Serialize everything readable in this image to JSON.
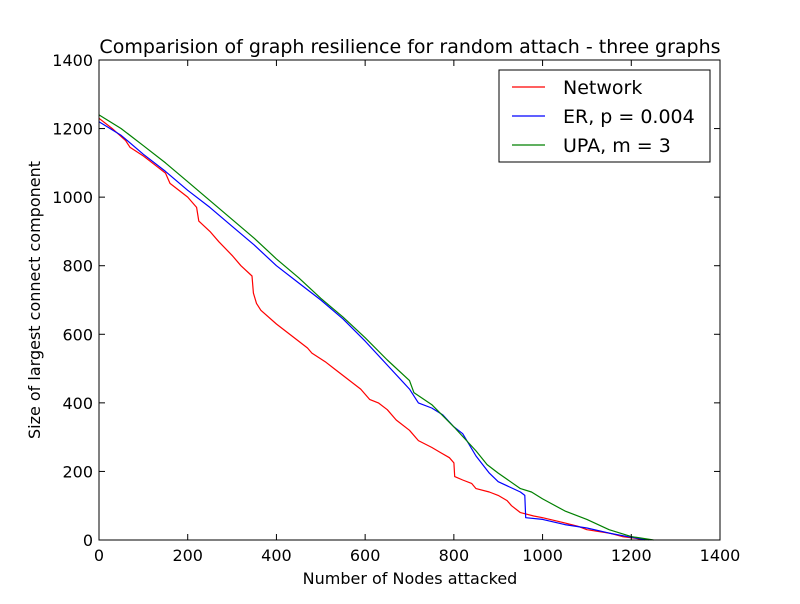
{
  "chart_data": {
    "type": "line",
    "title": "Comparision of graph resilience for random attach - three graphs",
    "xlabel": "Number of Nodes attacked",
    "ylabel": "Size of largest connect component",
    "xlim": [
      0,
      1400
    ],
    "ylim": [
      0,
      1400
    ],
    "xticks": [
      "0",
      "200",
      "400",
      "600",
      "800",
      "1000",
      "1200",
      "1400"
    ],
    "yticks": [
      "0",
      "200",
      "400",
      "600",
      "800",
      "1000",
      "1200",
      "1400"
    ],
    "grid": false,
    "legend_position": "top-right",
    "series": [
      {
        "name": "Network",
        "color": "#ff0000",
        "points": [
          [
            0,
            1230
          ],
          [
            30,
            1200
          ],
          [
            60,
            1165
          ],
          [
            70,
            1145
          ],
          [
            100,
            1120
          ],
          [
            130,
            1090
          ],
          [
            150,
            1070
          ],
          [
            160,
            1040
          ],
          [
            200,
            1000
          ],
          [
            220,
            970
          ],
          [
            225,
            930
          ],
          [
            250,
            900
          ],
          [
            270,
            870
          ],
          [
            300,
            830
          ],
          [
            320,
            800
          ],
          [
            345,
            770
          ],
          [
            348,
            720
          ],
          [
            355,
            690
          ],
          [
            365,
            670
          ],
          [
            400,
            630
          ],
          [
            420,
            610
          ],
          [
            450,
            580
          ],
          [
            470,
            560
          ],
          [
            480,
            545
          ],
          [
            510,
            520
          ],
          [
            530,
            500
          ],
          [
            560,
            470
          ],
          [
            590,
            440
          ],
          [
            610,
            410
          ],
          [
            630,
            400
          ],
          [
            650,
            380
          ],
          [
            670,
            350
          ],
          [
            700,
            320
          ],
          [
            720,
            290
          ],
          [
            750,
            270
          ],
          [
            770,
            255
          ],
          [
            790,
            240
          ],
          [
            800,
            225
          ],
          [
            802,
            185
          ],
          [
            820,
            175
          ],
          [
            840,
            165
          ],
          [
            850,
            150
          ],
          [
            880,
            140
          ],
          [
            900,
            130
          ],
          [
            920,
            115
          ],
          [
            930,
            100
          ],
          [
            950,
            80
          ],
          [
            980,
            70
          ],
          [
            1000,
            65
          ],
          [
            1050,
            50
          ],
          [
            1080,
            40
          ],
          [
            1100,
            30
          ],
          [
            1150,
            20
          ],
          [
            1180,
            10
          ],
          [
            1210,
            5
          ],
          [
            1230,
            0
          ]
        ]
      },
      {
        "name": "ER, p = 0.004",
        "color": "#0000ff",
        "points": [
          [
            0,
            1220
          ],
          [
            50,
            1180
          ],
          [
            100,
            1125
          ],
          [
            150,
            1075
          ],
          [
            200,
            1020
          ],
          [
            250,
            970
          ],
          [
            300,
            915
          ],
          [
            350,
            860
          ],
          [
            400,
            800
          ],
          [
            450,
            750
          ],
          [
            500,
            700
          ],
          [
            550,
            645
          ],
          [
            600,
            580
          ],
          [
            650,
            510
          ],
          [
            700,
            440
          ],
          [
            720,
            400
          ],
          [
            750,
            385
          ],
          [
            775,
            365
          ],
          [
            800,
            330
          ],
          [
            820,
            310
          ],
          [
            850,
            245
          ],
          [
            880,
            195
          ],
          [
            900,
            170
          ],
          [
            950,
            140
          ],
          [
            960,
            130
          ],
          [
            962,
            65
          ],
          [
            1000,
            60
          ],
          [
            1050,
            45
          ],
          [
            1100,
            35
          ],
          [
            1150,
            20
          ],
          [
            1200,
            8
          ],
          [
            1240,
            0
          ]
        ]
      },
      {
        "name": "UPA, m = 3",
        "color": "#008000",
        "points": [
          [
            0,
            1240
          ],
          [
            50,
            1200
          ],
          [
            100,
            1150
          ],
          [
            150,
            1100
          ],
          [
            200,
            1045
          ],
          [
            250,
            990
          ],
          [
            300,
            935
          ],
          [
            350,
            880
          ],
          [
            400,
            820
          ],
          [
            450,
            765
          ],
          [
            500,
            705
          ],
          [
            550,
            650
          ],
          [
            600,
            590
          ],
          [
            650,
            525
          ],
          [
            700,
            465
          ],
          [
            710,
            430
          ],
          [
            750,
            395
          ],
          [
            800,
            330
          ],
          [
            850,
            260
          ],
          [
            875,
            220
          ],
          [
            900,
            195
          ],
          [
            950,
            150
          ],
          [
            975,
            140
          ],
          [
            1000,
            120
          ],
          [
            1050,
            85
          ],
          [
            1100,
            60
          ],
          [
            1150,
            30
          ],
          [
            1200,
            10
          ],
          [
            1250,
            0
          ]
        ]
      }
    ]
  }
}
